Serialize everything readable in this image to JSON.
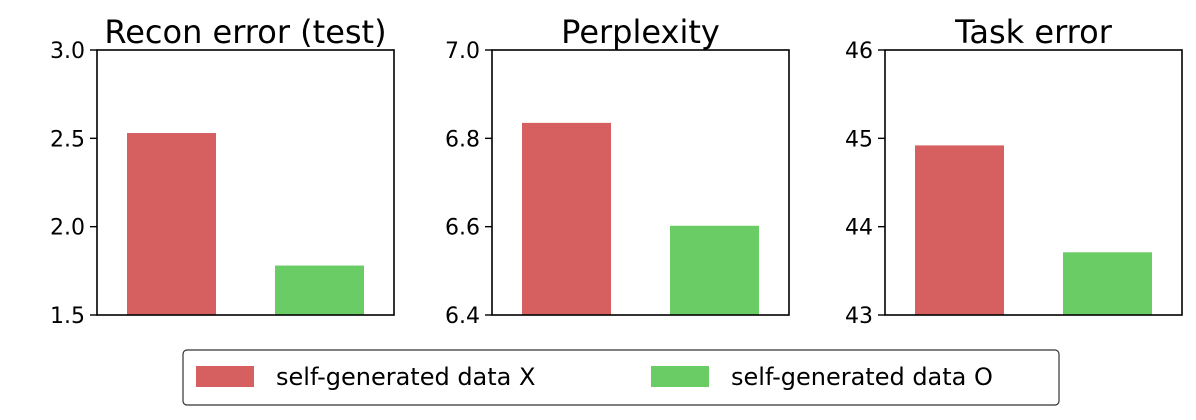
{
  "chart_data": [
    {
      "type": "bar",
      "title": "Recon error (test)",
      "series": [
        {
          "name": "self-generated data X",
          "value": 2.53
        },
        {
          "name": "self-generated data O",
          "value": 1.78
        }
      ],
      "ylim": [
        1.5,
        3.0
      ],
      "yticks": [
        1.5,
        2.0,
        2.5,
        3.0
      ],
      "ytick_labels": [
        "1.5",
        "2.0",
        "2.5",
        "3.0"
      ],
      "xlabel": "",
      "ylabel": ""
    },
    {
      "type": "bar",
      "title": "Perplexity",
      "series": [
        {
          "name": "self-generated data X",
          "value": 6.835
        },
        {
          "name": "self-generated data O",
          "value": 6.602
        }
      ],
      "ylim": [
        6.4,
        7.0
      ],
      "yticks": [
        6.4,
        6.6,
        6.8,
        7.0
      ],
      "ytick_labels": [
        "6.4",
        "6.6",
        "6.8",
        "7.0"
      ],
      "xlabel": "",
      "ylabel": ""
    },
    {
      "type": "bar",
      "title": "Task error",
      "series": [
        {
          "name": "self-generated data X",
          "value": 44.92
        },
        {
          "name": "self-generated data O",
          "value": 43.71
        }
      ],
      "ylim": [
        43,
        46
      ],
      "yticks": [
        43,
        44,
        45,
        46
      ],
      "ytick_labels": [
        "43",
        "44",
        "45",
        "46"
      ],
      "xlabel": "",
      "ylabel": ""
    }
  ],
  "legend": {
    "placement": "bottom-center",
    "entries": [
      {
        "label": "self-generated data X",
        "color": "#d65f5f"
      },
      {
        "label": "self-generated data O",
        "color": "#6acc64"
      }
    ]
  },
  "colors": {
    "series_x": "#d65f5f",
    "series_o": "#6acc64",
    "axis": "#000000",
    "background": "#ffffff"
  }
}
